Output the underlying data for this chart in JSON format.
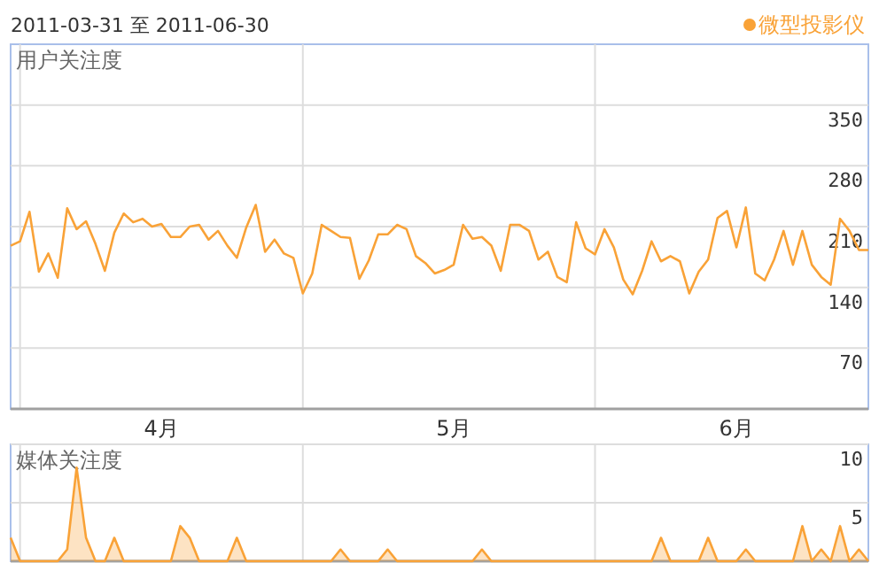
{
  "chart_data": [
    {
      "type": "line",
      "title": "2011-03-31 至 2011-06-30",
      "ylabel": "用户关注度",
      "legend": "top right",
      "grid": true,
      "x": [
        "2011-03-31",
        "2011-04-01",
        "2011-04-02",
        "2011-04-03",
        "2011-04-04",
        "2011-04-05",
        "2011-04-06",
        "2011-04-07",
        "2011-04-08",
        "2011-04-09",
        "2011-04-10",
        "2011-04-11",
        "2011-04-12",
        "2011-04-13",
        "2011-04-14",
        "2011-04-15",
        "2011-04-16",
        "2011-04-17",
        "2011-04-18",
        "2011-04-19",
        "2011-04-20",
        "2011-04-21",
        "2011-04-22",
        "2011-04-23",
        "2011-04-24",
        "2011-04-25",
        "2011-04-26",
        "2011-04-27",
        "2011-04-28",
        "2011-04-29",
        "2011-04-30",
        "2011-05-01",
        "2011-05-02",
        "2011-05-03",
        "2011-05-04",
        "2011-05-05",
        "2011-05-06",
        "2011-05-07",
        "2011-05-08",
        "2011-05-09",
        "2011-05-10",
        "2011-05-11",
        "2011-05-12",
        "2011-05-13",
        "2011-05-14",
        "2011-05-15",
        "2011-05-16",
        "2011-05-17",
        "2011-05-18",
        "2011-05-19",
        "2011-05-20",
        "2011-05-21",
        "2011-05-22",
        "2011-05-23",
        "2011-05-24",
        "2011-05-25",
        "2011-05-26",
        "2011-05-27",
        "2011-05-28",
        "2011-05-29",
        "2011-05-30",
        "2011-05-31",
        "2011-06-01",
        "2011-06-02",
        "2011-06-03",
        "2011-06-04",
        "2011-06-05",
        "2011-06-06",
        "2011-06-07",
        "2011-06-08",
        "2011-06-09",
        "2011-06-10",
        "2011-06-11",
        "2011-06-12",
        "2011-06-13",
        "2011-06-14",
        "2011-06-15",
        "2011-06-16",
        "2011-06-17",
        "2011-06-18",
        "2011-06-19",
        "2011-06-20",
        "2011-06-21",
        "2011-06-22",
        "2011-06-23",
        "2011-06-24",
        "2011-06-25",
        "2011-06-26",
        "2011-06-27",
        "2011-06-28",
        "2011-06-29",
        "2011-06-30"
      ],
      "xlim": [
        "2011-03-31",
        "2011-06-30"
      ],
      "xticks": [
        {
          "value": "2011-04-01",
          "label": null
        },
        {
          "value": "2011-04-16",
          "label": "4月"
        },
        {
          "value": "2011-05-01",
          "label": null
        },
        {
          "value": "2011-05-17",
          "label": "5月"
        },
        {
          "value": "2011-06-01",
          "label": null
        },
        {
          "value": "2011-06-16",
          "label": "6月"
        }
      ],
      "ylim": [
        0,
        420
      ],
      "yticks": [
        70,
        140,
        210,
        280,
        350
      ],
      "series": [
        {
          "name": "微型投影仪",
          "color": "#f9a237",
          "values": [
            188,
            193,
            227,
            158,
            179,
            151,
            231,
            207,
            216,
            190,
            159,
            203,
            225,
            215,
            219,
            210,
            213,
            198,
            198,
            210,
            212,
            195,
            205,
            188,
            174,
            209,
            235,
            181,
            195,
            179,
            174,
            133,
            156,
            212,
            205,
            198,
            197,
            150,
            171,
            201,
            201,
            212,
            207,
            176,
            168,
            156,
            160,
            166,
            212,
            196,
            198,
            188,
            159,
            212,
            212,
            205,
            172,
            181,
            152,
            146,
            215,
            185,
            178,
            207,
            186,
            149,
            132,
            159,
            193,
            170,
            176,
            170,
            133,
            158,
            172,
            220,
            228,
            186,
            232,
            156,
            148,
            172,
            205,
            166,
            205,
            166,
            152,
            143,
            219,
            205,
            183,
            183
          ]
        }
      ]
    },
    {
      "type": "area",
      "ylabel": "媒体关注度",
      "grid": true,
      "tick_labels": "y",
      "x": [
        "2011-03-31",
        "2011-04-01",
        "2011-04-02",
        "2011-04-03",
        "2011-04-04",
        "2011-04-05",
        "2011-04-06",
        "2011-04-07",
        "2011-04-08",
        "2011-04-09",
        "2011-04-10",
        "2011-04-11",
        "2011-04-12",
        "2011-04-13",
        "2011-04-14",
        "2011-04-15",
        "2011-04-16",
        "2011-04-17",
        "2011-04-18",
        "2011-04-19",
        "2011-04-20",
        "2011-04-21",
        "2011-04-22",
        "2011-04-23",
        "2011-04-24",
        "2011-04-25",
        "2011-04-26",
        "2011-04-27",
        "2011-04-28",
        "2011-04-29",
        "2011-04-30",
        "2011-05-01",
        "2011-05-02",
        "2011-05-03",
        "2011-05-04",
        "2011-05-05",
        "2011-05-06",
        "2011-05-07",
        "2011-05-08",
        "2011-05-09",
        "2011-05-10",
        "2011-05-11",
        "2011-05-12",
        "2011-05-13",
        "2011-05-14",
        "2011-05-15",
        "2011-05-16",
        "2011-05-17",
        "2011-05-18",
        "2011-05-19",
        "2011-05-20",
        "2011-05-21",
        "2011-05-22",
        "2011-05-23",
        "2011-05-24",
        "2011-05-25",
        "2011-05-26",
        "2011-05-27",
        "2011-05-28",
        "2011-05-29",
        "2011-05-30",
        "2011-05-31",
        "2011-06-01",
        "2011-06-02",
        "2011-06-03",
        "2011-06-04",
        "2011-06-05",
        "2011-06-06",
        "2011-06-07",
        "2011-06-08",
        "2011-06-09",
        "2011-06-10",
        "2011-06-11",
        "2011-06-12",
        "2011-06-13",
        "2011-06-14",
        "2011-06-15",
        "2011-06-16",
        "2011-06-17",
        "2011-06-18",
        "2011-06-19",
        "2011-06-20",
        "2011-06-21",
        "2011-06-22",
        "2011-06-23",
        "2011-06-24",
        "2011-06-25",
        "2011-06-26",
        "2011-06-27",
        "2011-06-28",
        "2011-06-29",
        "2011-06-30"
      ],
      "xlim": [
        "2011-03-31",
        "2011-06-30"
      ],
      "xticks": [
        {
          "value": "2011-04-01",
          "label": null
        },
        {
          "value": "2011-05-01",
          "label": null
        },
        {
          "value": "2011-06-01",
          "label": null
        }
      ],
      "ylim": [
        0,
        10
      ],
      "yticks": [
        5,
        10
      ],
      "series": [
        {
          "color": "#f9a237",
          "values": [
            2,
            0,
            0,
            0,
            0,
            0,
            1,
            8,
            2,
            0,
            0,
            2,
            0,
            0,
            0,
            0,
            0,
            0,
            3,
            2,
            0,
            0,
            0,
            0,
            2,
            0,
            0,
            0,
            0,
            0,
            0,
            0,
            0,
            0,
            0,
            1,
            0,
            0,
            0,
            0,
            1,
            0,
            0,
            0,
            0,
            0,
            0,
            0,
            0,
            0,
            1,
            0,
            0,
            0,
            0,
            0,
            0,
            0,
            0,
            0,
            0,
            0,
            0,
            0,
            0,
            0,
            0,
            0,
            0,
            2,
            0,
            0,
            0,
            0,
            2,
            0,
            0,
            0,
            1,
            0,
            0,
            0,
            0,
            0,
            3,
            0,
            1,
            0,
            3,
            0,
            1,
            0
          ]
        }
      ]
    }
  ]
}
